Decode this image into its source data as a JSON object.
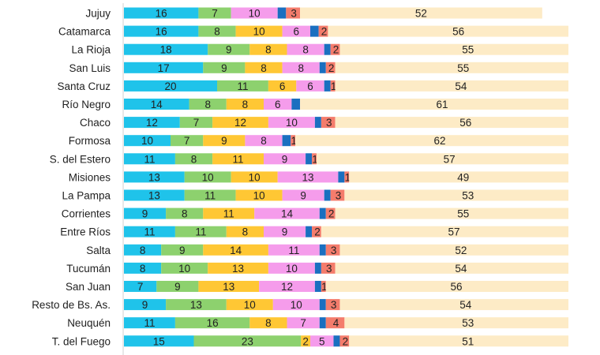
{
  "chart_data": {
    "type": "bar",
    "orientation": "horizontal",
    "stacked": true,
    "grid": false,
    "legend": "none",
    "categories": [
      "Jujuy",
      "Catamarca",
      "La Rioja",
      "San Luis",
      "Santa Cruz",
      "Río Negro",
      "Chaco",
      "Formosa",
      "S. del Estero",
      "Misiones",
      "La Pampa",
      "Corrientes",
      "Entre Ríos",
      "Salta",
      "Tucumán",
      "San Juan",
      "Resto de Bs. As.",
      "Neuquén",
      "T. del Fuego"
    ],
    "series": [
      {
        "color": "#1FC3EA",
        "labeled": true,
        "values": [
          16,
          16,
          18,
          17,
          20,
          14,
          12,
          10,
          11,
          13,
          13,
          9,
          11,
          8,
          8,
          7,
          9,
          11,
          15
        ]
      },
      {
        "color": "#8DD16E",
        "labeled": true,
        "values": [
          7,
          8,
          9,
          9,
          11,
          8,
          7,
          7,
          8,
          10,
          11,
          8,
          11,
          9,
          10,
          9,
          13,
          16,
          23
        ]
      },
      {
        "color": "#FFC734",
        "labeled": true,
        "values": [
          0,
          10,
          8,
          8,
          6,
          8,
          12,
          9,
          11,
          10,
          10,
          11,
          8,
          14,
          13,
          13,
          10,
          8,
          2
        ]
      },
      {
        "color": "#F59CEB",
        "labeled": true,
        "values": [
          10,
          6,
          8,
          8,
          6,
          6,
          10,
          8,
          9,
          13,
          9,
          14,
          9,
          11,
          10,
          12,
          10,
          7,
          5
        ]
      },
      {
        "color": "#1A6FC0",
        "labeled": false,
        "values": [
          2,
          2,
          1,
          1,
          1,
          2,
          1,
          2,
          1,
          1,
          1,
          1,
          1,
          1,
          1,
          1,
          1,
          1,
          1
        ]
      },
      {
        "color": "#F47C6C",
        "labeled": true,
        "values": [
          3,
          2,
          2,
          2,
          1,
          0,
          3,
          1,
          1,
          1,
          3,
          2,
          2,
          3,
          3,
          1,
          3,
          4,
          2
        ]
      },
      {
        "color": "#FDEBC6",
        "labeled": true,
        "values": [
          52,
          56,
          55,
          55,
          54,
          61,
          56,
          62,
          57,
          49,
          53,
          55,
          57,
          52,
          54,
          56,
          54,
          53,
          51
        ]
      }
    ]
  }
}
